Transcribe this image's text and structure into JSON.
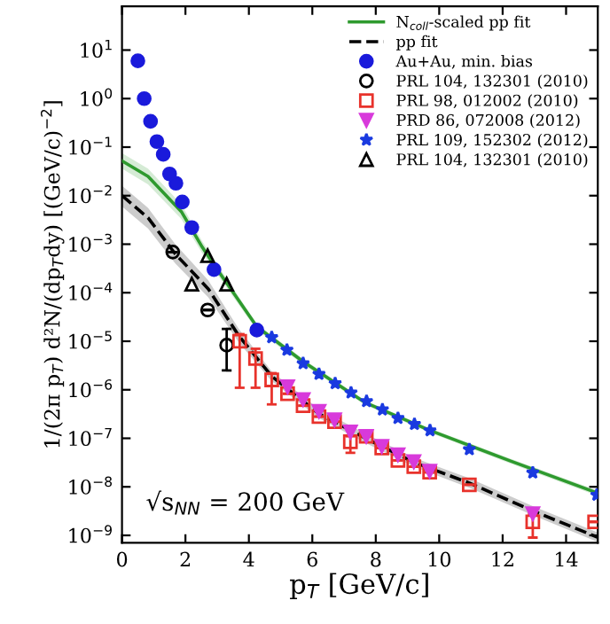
{
  "chart_data": {
    "type": "scatter",
    "xlabel": "p$_{T}$ [GeV/c]",
    "ylabel": "1/(2π p$_{T}$) d²N/(dp$_{T}$dy) [(GeV/c)$^{−2}$]",
    "log": "y",
    "xlim": [
      0,
      15
    ],
    "ylim": [
      7e-10,
      80
    ],
    "xticks": [
      0,
      2,
      4,
      6,
      8,
      10,
      12,
      14
    ],
    "yticks": [
      {
        "value": 10,
        "label": "10$^{1}$"
      },
      {
        "value": 1,
        "label": "10$^{0}$"
      },
      {
        "value": 0.1,
        "label": "10$^{−1}$"
      },
      {
        "value": 0.01,
        "label": "10$^{−2}$"
      },
      {
        "value": 0.001,
        "label": "10$^{−3}$"
      },
      {
        "value": 0.0001,
        "label": "10$^{−4}$"
      },
      {
        "value": 1e-05,
        "label": "10$^{−5}$"
      },
      {
        "value": 1e-06,
        "label": "10$^{−6}$"
      },
      {
        "value": 1e-07,
        "label": "10$^{−7}$"
      },
      {
        "value": 1e-08,
        "label": "10$^{−8}$"
      },
      {
        "value": 1e-09,
        "label": "10$^{−9}$"
      }
    ],
    "grid": false,
    "legend": "top right",
    "annotations": [
      "√s$_{NN}$ = 200 GeV"
    ],
    "series": [
      {
        "type": "line",
        "name": "N$_{coll}$-scaled pp fit",
        "color": "#2e9a2e",
        "line_style": "solid",
        "x": [
          0,
          0.82,
          1.87,
          2.53,
          2.91,
          4.25,
          5.71,
          7.68,
          9.71,
          12.25,
          15
        ],
        "values": [
          0.052,
          0.025,
          0.0047,
          0.00087,
          0.00037,
          2e-05,
          3.8e-06,
          5.4e-07,
          1.45e-07,
          3.4e-08,
          7.4e-09
        ],
        "lower": [
          0.036,
          0.017,
          0.0033,
          0.00065,
          0.00029,
          1.7e-05,
          3.3e-06,
          4.8e-07,
          1.3e-07,
          3e-08,
          6.5e-09
        ],
        "upper": [
          0.075,
          0.036,
          0.0066,
          0.00115,
          0.00047,
          2.3e-05,
          4.3e-06,
          6e-07,
          1.6e-07,
          3.8e-08,
          8.4e-09
        ]
      },
      {
        "type": "line",
        "name": "pp fit",
        "color": "#000000",
        "line_style": "dashed",
        "x": [
          0,
          0.82,
          1.68,
          2.72,
          3.68,
          4.72,
          6.21,
          7.68,
          9.2,
          10.95,
          12.95,
          15
        ],
        "values": [
          0.01,
          0.0035,
          0.00063,
          0.00012,
          1.3e-05,
          1.9e-06,
          3.2e-07,
          1e-07,
          3.2e-08,
          1.2e-08,
          3.2e-09,
          9.1e-10
        ],
        "lower": [
          0.006,
          0.0021,
          0.0004,
          8e-05,
          9.5e-06,
          1.5e-06,
          2.6e-07,
          8e-08,
          2.6e-08,
          9.6e-09,
          2.6e-09,
          7.3e-10
        ],
        "upper": [
          0.016,
          0.0056,
          0.001,
          0.00018,
          1.8e-05,
          2.4e-06,
          4e-07,
          1.25e-07,
          4e-08,
          1.5e-08,
          4e-09,
          1.15e-09
        ]
      },
      {
        "name": "Au+Au, min. bias",
        "color": "#1a1adb",
        "marker": "circle",
        "x": [
          0.5,
          0.7,
          0.9,
          1.1,
          1.3,
          1.5,
          1.7,
          1.9,
          2.2,
          2.9,
          4.25
        ],
        "values": [
          6.0,
          1.0,
          0.34,
          0.13,
          0.071,
          0.028,
          0.018,
          0.0074,
          0.0022,
          0.0003,
          1.7e-05
        ]
      },
      {
        "name": "PRL 104, 132301 (2010)",
        "color": "#000000",
        "marker": "circle",
        "x": [
          1.6,
          2.7,
          3.3
        ],
        "values": [
          0.00069,
          4.4e-05,
          8.3e-06
        ],
        "errors": [
          null,
          null,
          [
            2.5e-06,
            1.8e-05
          ]
        ]
      },
      {
        "name": "PRL 98, 012002 (2010)",
        "color": "#e8322b",
        "marker": "square",
        "x": [
          3.71,
          4.21,
          4.72,
          5.22,
          5.71,
          6.21,
          6.7,
          7.2,
          7.7,
          8.19,
          8.7,
          9.2,
          9.7,
          10.95,
          12.95,
          14.9
        ],
        "values": [
          1e-05,
          4.4e-06,
          1.6e-06,
          8.3e-07,
          4.7e-07,
          2.8e-07,
          2.2e-07,
          8.5e-08,
          1.1e-07,
          6.3e-08,
          3.5e-08,
          2.6e-08,
          2e-08,
          1.1e-08,
          1.9e-09,
          1.9e-09
        ],
        "errors": [
          [
            1.1e-06,
            1.4e-05
          ],
          [
            1.1e-06,
            7e-06
          ],
          [
            5e-07,
            2.2e-06
          ],
          null,
          null,
          null,
          null,
          [
            5e-08,
            1.1e-07
          ],
          null,
          null,
          null,
          null,
          null,
          null,
          [
            9e-10,
            2.8e-09
          ],
          null
        ]
      },
      {
        "name": "PRD 86, 072008 (2012)",
        "color": "#d83adb",
        "marker": "triangle_down",
        "x": [
          5.22,
          5.71,
          6.21,
          6.7,
          7.2,
          7.7,
          8.19,
          8.7,
          9.2,
          9.7,
          12.95
        ],
        "values": [
          1.15e-06,
          6.3e-07,
          3.6e-07,
          2.4e-07,
          1.35e-07,
          1.1e-07,
          6.8e-08,
          4.6e-08,
          3.3e-08,
          2.1e-08,
          2.8e-09
        ]
      },
      {
        "name": "PRL 109, 152302 (2012)",
        "color": "#1a3ae0",
        "marker": "star",
        "x": [
          4.72,
          5.2,
          5.71,
          6.21,
          6.72,
          7.22,
          7.71,
          8.21,
          8.7,
          9.22,
          9.71,
          10.95,
          12.95,
          14.97
        ],
        "values": [
          1.2e-05,
          6.6e-06,
          3.5e-06,
          2.1e-06,
          1.35e-06,
          8.7e-07,
          5.8e-07,
          3.9e-07,
          2.6e-07,
          1.95e-07,
          1.45e-07,
          5.9e-08,
          1.95e-08,
          6.8e-09
        ]
      },
      {
        "name": "PRL 104, 132301 (2010)",
        "color": "#000000",
        "marker": "triangle",
        "x": [
          2.2,
          2.7,
          3.3
        ],
        "values": [
          0.00015,
          0.00058,
          0.00015
        ]
      }
    ]
  }
}
